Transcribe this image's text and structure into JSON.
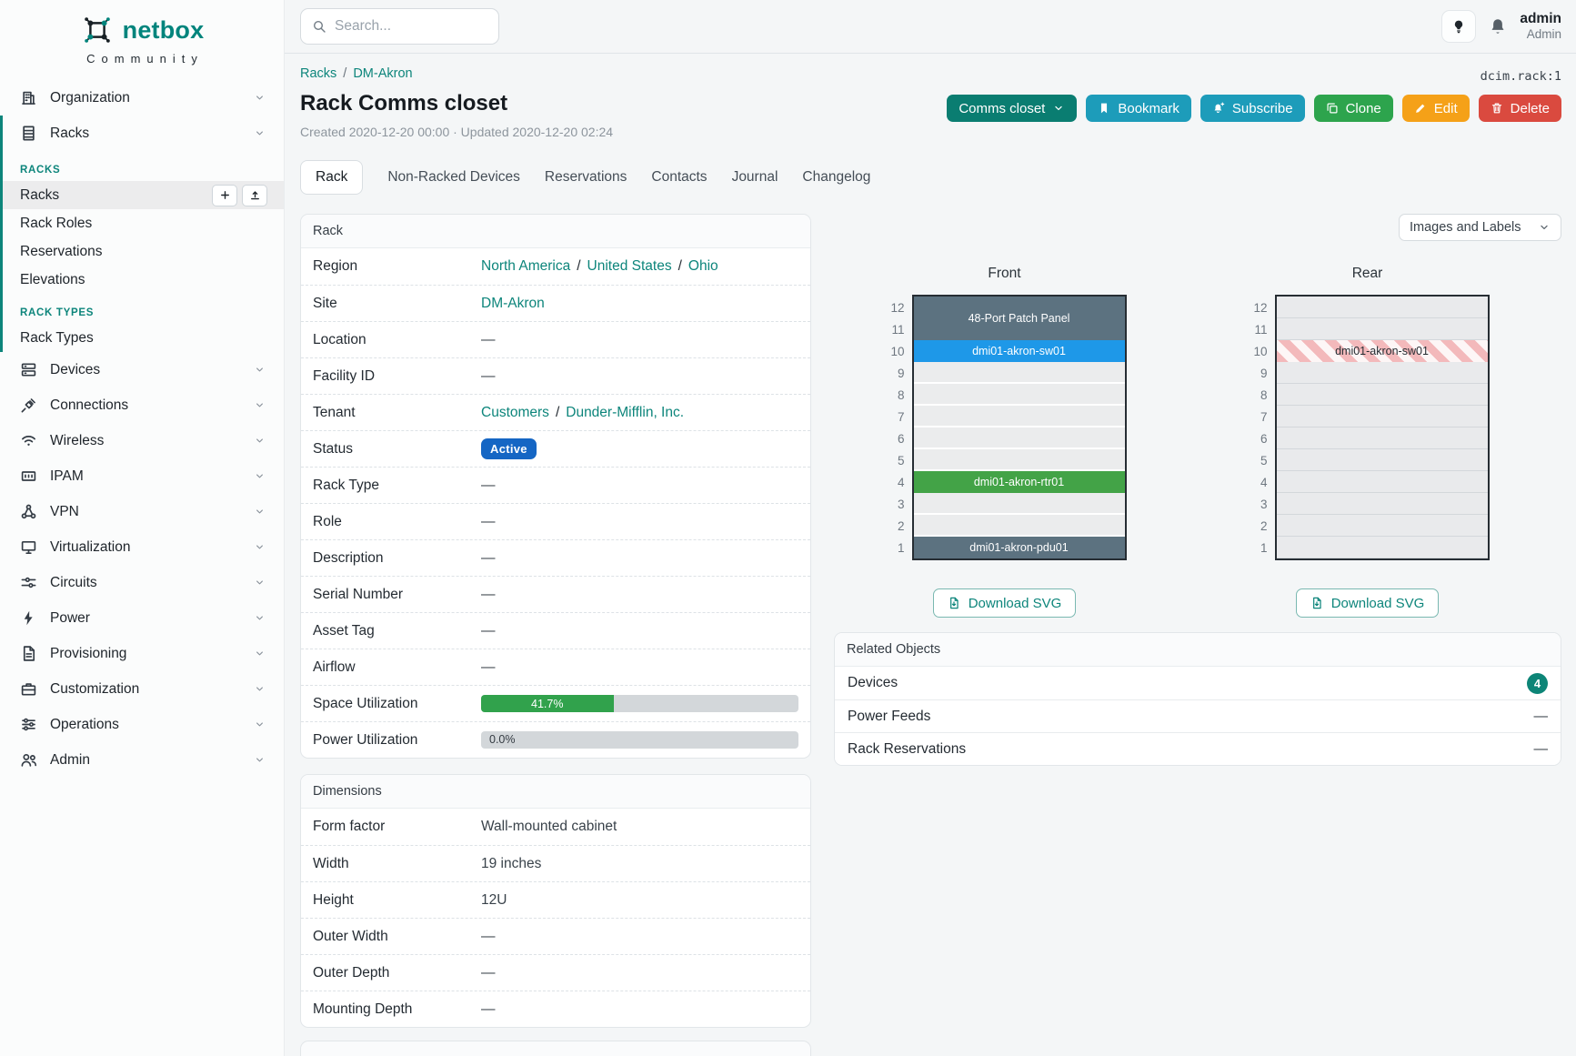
{
  "colors": {
    "accent_teal": "#0d857b",
    "brand_teal": "#00847c",
    "status_active_bg": "#1566c4",
    "progress_green": "#31a24c",
    "device_slate": "#5c7280",
    "device_blue": "#1e98e8",
    "device_green": "#43a347",
    "device_hatch_pink": "#f3b9bb",
    "btn_group": "#0a7d71",
    "btn_info": "#1d9cba",
    "btn_success": "#2da44d",
    "btn_warning": "#f5a118",
    "btn_danger": "#da4a3f",
    "badge_count_bg": "#0d8577"
  },
  "sidebar": {
    "brand": {
      "name": "netbox",
      "community": "Community"
    },
    "menu_top": [
      {
        "label": "Organization",
        "icon": "organization"
      }
    ],
    "racks_group": {
      "parent": {
        "label": "Racks",
        "icon": "racks"
      },
      "sections": [
        {
          "title": "RACKS",
          "items": [
            {
              "label": "Racks",
              "active": true,
              "actions": [
                {
                  "icon": "plus"
                },
                {
                  "icon": "upload"
                }
              ]
            },
            {
              "label": "Rack Roles"
            },
            {
              "label": "Reservations"
            },
            {
              "label": "Elevations"
            }
          ]
        },
        {
          "title": "RACK TYPES",
          "items": [
            {
              "label": "Rack Types"
            }
          ]
        }
      ]
    },
    "menu_bottom": [
      {
        "label": "Devices",
        "icon": "devices"
      },
      {
        "label": "Connections",
        "icon": "connections"
      },
      {
        "label": "Wireless",
        "icon": "wireless"
      },
      {
        "label": "IPAM",
        "icon": "ipam"
      },
      {
        "label": "VPN",
        "icon": "vpn"
      },
      {
        "label": "Virtualization",
        "icon": "virtualization"
      },
      {
        "label": "Circuits",
        "icon": "circuits"
      },
      {
        "label": "Power",
        "icon": "power"
      },
      {
        "label": "Provisioning",
        "icon": "provisioning"
      },
      {
        "label": "Customization",
        "icon": "customization"
      },
      {
        "label": "Operations",
        "icon": "operations"
      },
      {
        "label": "Admin",
        "icon": "admin"
      }
    ]
  },
  "topbar": {
    "search_placeholder": "Search...",
    "user": {
      "name": "admin",
      "role": "Admin"
    }
  },
  "page": {
    "breadcrumb": [
      {
        "label": "Racks"
      },
      {
        "label": "DM-Akron"
      }
    ],
    "breadcrumb_sep": "/",
    "link_sep": "/",
    "object_ref": "dcim.rack:1",
    "title": "Rack Comms closet",
    "subtitle": "Created 2020-12-20 00:00 · Updated 2020-12-20 02:24",
    "actions": [
      {
        "id": "comms-closet-group",
        "label": "Comms closet",
        "icon": "chevron-down",
        "style": "group"
      },
      {
        "id": "bookmark",
        "label": "Bookmark",
        "icon": "bookmark",
        "style": "info"
      },
      {
        "id": "subscribe",
        "label": "Subscribe",
        "icon": "bell-plus",
        "style": "info"
      },
      {
        "id": "clone",
        "label": "Clone",
        "icon": "clone",
        "style": "success"
      },
      {
        "id": "edit",
        "label": "Edit",
        "icon": "pencil",
        "style": "warning"
      },
      {
        "id": "delete",
        "label": "Delete",
        "icon": "trash",
        "style": "danger"
      }
    ],
    "tabs": [
      {
        "label": "Rack",
        "active": true
      },
      {
        "label": "Non-Racked Devices"
      },
      {
        "label": "Reservations"
      },
      {
        "label": "Contacts"
      },
      {
        "label": "Journal"
      },
      {
        "label": "Changelog"
      }
    ]
  },
  "rack_panel": {
    "title": "Rack",
    "rows": [
      {
        "label": "Region",
        "type": "links",
        "links": [
          "North America",
          "United States",
          "Ohio"
        ]
      },
      {
        "label": "Site",
        "type": "links",
        "links": [
          "DM-Akron"
        ]
      },
      {
        "label": "Location",
        "type": "text",
        "value": "—"
      },
      {
        "label": "Facility ID",
        "type": "text",
        "value": "—"
      },
      {
        "label": "Tenant",
        "type": "links",
        "links": [
          "Customers",
          "Dunder-Mifflin, Inc."
        ]
      },
      {
        "label": "Status",
        "type": "badge",
        "value": "Active"
      },
      {
        "label": "Rack Type",
        "type": "text",
        "value": "—"
      },
      {
        "label": "Role",
        "type": "text",
        "value": "—"
      },
      {
        "label": "Description",
        "type": "text",
        "value": "—"
      },
      {
        "label": "Serial Number",
        "type": "text",
        "value": "—"
      },
      {
        "label": "Asset Tag",
        "type": "text",
        "value": "—"
      },
      {
        "label": "Airflow",
        "type": "text",
        "value": "—"
      },
      {
        "label": "Space Utilization",
        "type": "progress",
        "value": "41.7%",
        "percent": 41.7
      },
      {
        "label": "Power Utilization",
        "type": "progress",
        "value": "0.0%",
        "percent": 0
      }
    ]
  },
  "dimensions_panel": {
    "title": "Dimensions",
    "rows": [
      {
        "label": "Form factor",
        "type": "text",
        "value": "Wall-mounted cabinet"
      },
      {
        "label": "Width",
        "type": "text",
        "value": "19 inches"
      },
      {
        "label": "Height",
        "type": "text",
        "value": "12U"
      },
      {
        "label": "Outer Width",
        "type": "text",
        "value": "—"
      },
      {
        "label": "Outer Depth",
        "type": "text",
        "value": "—"
      },
      {
        "label": "Mounting Depth",
        "type": "text",
        "value": "—"
      }
    ]
  },
  "elevations": {
    "view_select": "Images and Labels",
    "download_label": "Download SVG",
    "unit_numbers": [
      12,
      11,
      10,
      9,
      8,
      7,
      6,
      5,
      4,
      3,
      2,
      1
    ],
    "views": [
      {
        "side": "front",
        "title": "Front",
        "devices": [
          {
            "name": "48-Port Patch Panel",
            "top_unit": 12,
            "u_height": 2,
            "style": "slate"
          },
          {
            "name": "dmi01-akron-sw01",
            "top_unit": 10,
            "u_height": 1,
            "style": "blue"
          },
          {
            "name": "dmi01-akron-rtr01",
            "top_unit": 4,
            "u_height": 1,
            "style": "green"
          },
          {
            "name": "dmi01-akron-pdu01",
            "top_unit": 1,
            "u_height": 1,
            "style": "slate"
          }
        ]
      },
      {
        "side": "rear",
        "title": "Rear",
        "devices": [
          {
            "name": "dmi01-akron-sw01",
            "top_unit": 10,
            "u_height": 1,
            "style": "hatched"
          }
        ]
      }
    ]
  },
  "related_objects": {
    "title": "Related Objects",
    "rows": [
      {
        "label": "Devices",
        "count": "4"
      },
      {
        "label": "Power Feeds",
        "value": "—"
      },
      {
        "label": "Rack Reservations",
        "value": "—"
      }
    ]
  }
}
